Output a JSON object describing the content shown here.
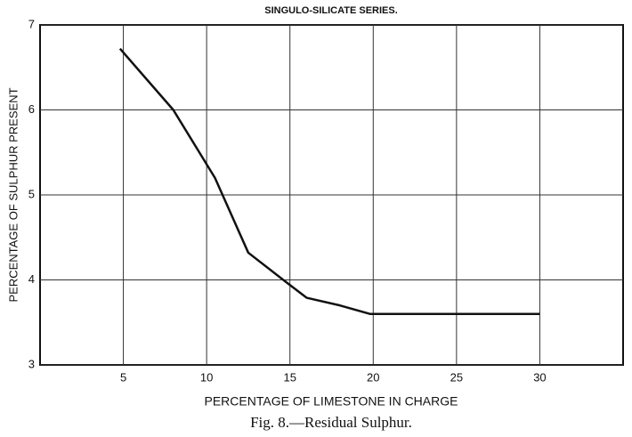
{
  "chart_data": {
    "type": "line",
    "title": "SINGULO-SILICATE SERIES.",
    "x_label": "PERCENTAGE OF LIMESTONE IN CHARGE",
    "y_label": "PERCENTAGE OF SULPHUR PRESENT",
    "caption": "Fig. 8.—Residual Sulphur.",
    "x": [
      4.8,
      8,
      10.5,
      12.5,
      14.8,
      16,
      18,
      19.8,
      30
    ],
    "values": [
      6.72,
      6.0,
      5.2,
      4.32,
      3.97,
      3.79,
      3.7,
      3.6,
      3.6
    ],
    "color": "#111111",
    "xlim": [
      0,
      35
    ],
    "xticks": [
      5,
      10,
      15,
      20,
      25,
      30
    ],
    "ylim": [
      3,
      7
    ],
    "yticks": [
      3,
      4,
      5,
      6,
      7
    ],
    "grid": true
  }
}
